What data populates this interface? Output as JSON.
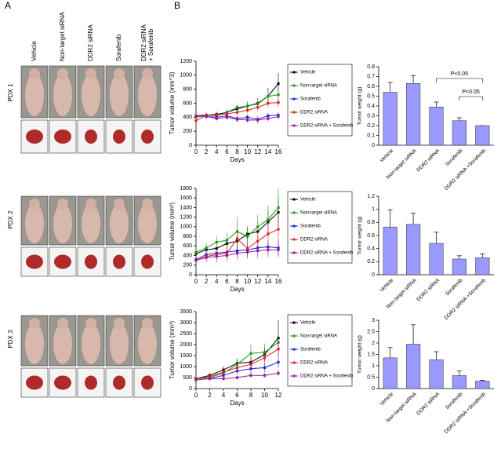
{
  "panel_labels": [
    "A",
    "B"
  ],
  "column_labels": [
    "Vehicle",
    "Non-target siRNA",
    "DDR2 siRNA",
    "Sorafenib",
    "DDR2 siRNA + Sorafenib"
  ],
  "row_labels": [
    "PDX 1",
    "PDX 2",
    "PDX 3"
  ],
  "chart_data": [
    {
      "type": "line",
      "xlabel": "Days",
      "ylabel": "Tumor volume (mm^3)",
      "x": [
        0,
        2,
        4,
        6,
        8,
        10,
        12,
        14,
        16
      ],
      "xlim": [
        0,
        16
      ],
      "xticks": [
        0,
        2,
        4,
        6,
        8,
        10,
        12,
        14,
        16
      ],
      "ylim": [
        0,
        1200
      ],
      "yticks": [
        0,
        200,
        400,
        600,
        800,
        1000,
        1200
      ],
      "legend": "right",
      "series": [
        {
          "name": "Vehicle",
          "color": "#000000",
          "values": [
            420,
            430,
            440,
            470,
            520,
            560,
            600,
            700,
            880
          ],
          "errors": [
            40,
            30,
            40,
            40,
            50,
            60,
            70,
            120,
            150
          ]
        },
        {
          "name": "Non-target siRNA",
          "color": "#1a9a1a",
          "values": [
            400,
            430,
            420,
            470,
            540,
            560,
            590,
            700,
            720
          ],
          "errors": [
            40,
            40,
            30,
            40,
            40,
            50,
            60,
            80,
            90
          ]
        },
        {
          "name": "Sorafenib",
          "color": "#2020e0",
          "values": [
            420,
            410,
            400,
            420,
            380,
            400,
            370,
            420,
            430
          ],
          "errors": [
            30,
            30,
            30,
            30,
            40,
            40,
            40,
            40,
            40
          ]
        },
        {
          "name": "DDR2 siRNA",
          "color": "#e02020",
          "values": [
            350,
            430,
            430,
            450,
            470,
            500,
            540,
            600,
            610
          ],
          "errors": [
            40,
            30,
            30,
            40,
            40,
            40,
            50,
            60,
            60
          ]
        },
        {
          "name": "DDR2 siRNA + Sorafenib",
          "color": "#9a1a9a",
          "values": [
            420,
            410,
            380,
            400,
            370,
            360,
            360,
            380,
            410
          ],
          "errors": [
            30,
            30,
            30,
            40,
            40,
            40,
            50,
            40,
            40
          ]
        }
      ]
    },
    {
      "type": "bar",
      "ylabel": "Tumor weight (g)",
      "categories": [
        "Vehicle",
        "Non-target siRNA",
        "DDR2 siRNA",
        "Sorafenib",
        "DDR2 siRNA +Sorafenib"
      ],
      "values": [
        0.54,
        0.63,
        0.39,
        0.25,
        0.2
      ],
      "errors": [
        0.1,
        0.08,
        0.05,
        0.03,
        0
      ],
      "color": "#9999ff",
      "ylim": [
        0,
        0.8
      ],
      "yticks": [
        0,
        0.1,
        0.2,
        0.3,
        0.4,
        0.5,
        0.6,
        0.7,
        0.8
      ],
      "annotations": [
        "P<0.05",
        "P<0.05"
      ]
    },
    {
      "type": "line",
      "xlabel": "Days",
      "ylabel": "Tumor volume (mm³)",
      "x": [
        0,
        2,
        4,
        6,
        8,
        10,
        12,
        14,
        16
      ],
      "xlim": [
        0,
        16
      ],
      "xticks": [
        0,
        2,
        4,
        6,
        8,
        10,
        12,
        14,
        16
      ],
      "ylim": [
        0,
        1800
      ],
      "yticks": [
        0,
        200,
        400,
        600,
        800,
        1000,
        1200,
        1400,
        1600,
        1800
      ],
      "legend": "right",
      "series": [
        {
          "name": "Vehicle",
          "color": "#000000",
          "values": [
            440,
            520,
            550,
            650,
            700,
            850,
            900,
            1100,
            1300
          ],
          "errors": [
            60,
            80,
            100,
            120,
            150,
            150,
            200,
            250,
            300
          ]
        },
        {
          "name": "Non-target siRNA",
          "color": "#1a9a1a",
          "values": [
            470,
            560,
            680,
            720,
            900,
            800,
            1000,
            1150,
            1400
          ],
          "errors": [
            60,
            100,
            120,
            150,
            300,
            200,
            250,
            300,
            400
          ]
        },
        {
          "name": "Sorafenib",
          "color": "#2020e0",
          "values": [
            320,
            420,
            450,
            470,
            500,
            520,
            560,
            580,
            560
          ],
          "errors": [
            60,
            80,
            100,
            100,
            120,
            120,
            130,
            150,
            150
          ]
        },
        {
          "name": "DDR2 siRNA",
          "color": "#e02020",
          "values": [
            300,
            380,
            420,
            450,
            750,
            550,
            700,
            850,
            950
          ],
          "errors": [
            60,
            80,
            100,
            120,
            200,
            150,
            200,
            250,
            300
          ]
        },
        {
          "name": "DDR2 siRNA + Sorafenib",
          "color": "#9a1a9a",
          "values": [
            300,
            360,
            380,
            400,
            450,
            470,
            500,
            520,
            520
          ],
          "errors": [
            80,
            100,
            120,
            120,
            130,
            130,
            150,
            150,
            150
          ]
        }
      ]
    },
    {
      "type": "bar",
      "ylabel": "Tumor weight (g)",
      "categories": [
        "Vehicle",
        "Non-target siRNA",
        "DDR2 siRNA",
        "Sorafenib",
        "DDR2 siRNA +Sorafenib"
      ],
      "values": [
        0.73,
        0.77,
        0.48,
        0.24,
        0.26
      ],
      "errors": [
        0.26,
        0.17,
        0.17,
        0.05,
        0.06
      ],
      "color": "#9999ff",
      "ylim": [
        0,
        1.2
      ],
      "yticks": [
        0,
        0.2,
        0.4,
        0.6,
        0.8,
        1,
        1.2
      ]
    },
    {
      "type": "line",
      "xlabel": "Days",
      "ylabel": "Tumor volume (mm³)",
      "x": [
        0,
        2,
        4,
        6,
        8,
        10,
        12
      ],
      "xlim": [
        0,
        12
      ],
      "xticks": [
        0,
        2,
        4,
        6,
        8,
        10,
        12
      ],
      "ylim": [
        0,
        3500
      ],
      "yticks": [
        0,
        500,
        1000,
        1500,
        2000,
        2500,
        3000,
        3500
      ],
      "legend": "right",
      "series": [
        {
          "name": "Vehicle",
          "color": "#000000",
          "values": [
            450,
            600,
            850,
            1150,
            1200,
            1550,
            2300
          ],
          "errors": [
            80,
            100,
            150,
            200,
            250,
            300,
            800
          ]
        },
        {
          "name": "Non-target siRNA",
          "color": "#1a9a1a",
          "values": [
            450,
            500,
            700,
            1100,
            1600,
            1650,
            2100
          ],
          "errors": [
            80,
            100,
            150,
            250,
            400,
            400,
            500
          ]
        },
        {
          "name": "Sorafenib",
          "color": "#2020e0",
          "values": [
            400,
            450,
            600,
            800,
            900,
            950,
            1200
          ],
          "errors": [
            60,
            80,
            100,
            150,
            200,
            200,
            250
          ]
        },
        {
          "name": "DDR2 siRNA",
          "color": "#e02020",
          "values": [
            450,
            550,
            750,
            950,
            1100,
            1400,
            1800
          ],
          "errors": [
            80,
            100,
            150,
            200,
            250,
            300,
            350
          ]
        },
        {
          "name": "DDR2 siRNA + Sorafenib",
          "color": "#9a1a9a",
          "values": [
            400,
            450,
            450,
            500,
            600,
            600,
            700
          ],
          "errors": [
            60,
            80,
            80,
            100,
            100,
            120,
            150
          ]
        }
      ]
    },
    {
      "type": "bar",
      "ylabel": "Tumor weight (g)",
      "categories": [
        "Vehicle",
        "Non-target siRNA",
        "DDR2 siRNA",
        "Sorafenib",
        "DDR2 siRNA +Sorafenib"
      ],
      "values": [
        1.35,
        1.95,
        1.27,
        0.57,
        0.33
      ],
      "errors": [
        0.45,
        0.85,
        0.35,
        0.2,
        0.03
      ],
      "color": "#9999ff",
      "ylim": [
        0,
        3
      ],
      "yticks": [
        0,
        0.5,
        1,
        1.5,
        2,
        2.5,
        3
      ]
    }
  ]
}
